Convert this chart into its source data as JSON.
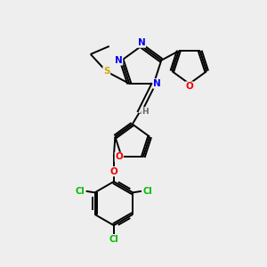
{
  "background_color": "#eeeeee",
  "bond_color": "#000000",
  "atom_colors": {
    "N": "#0000ee",
    "O": "#ee0000",
    "S": "#ccaa00",
    "Cl": "#00bb00",
    "C": "#000000",
    "H": "#666666"
  },
  "figsize": [
    3.0,
    3.0
  ],
  "dpi": 100
}
